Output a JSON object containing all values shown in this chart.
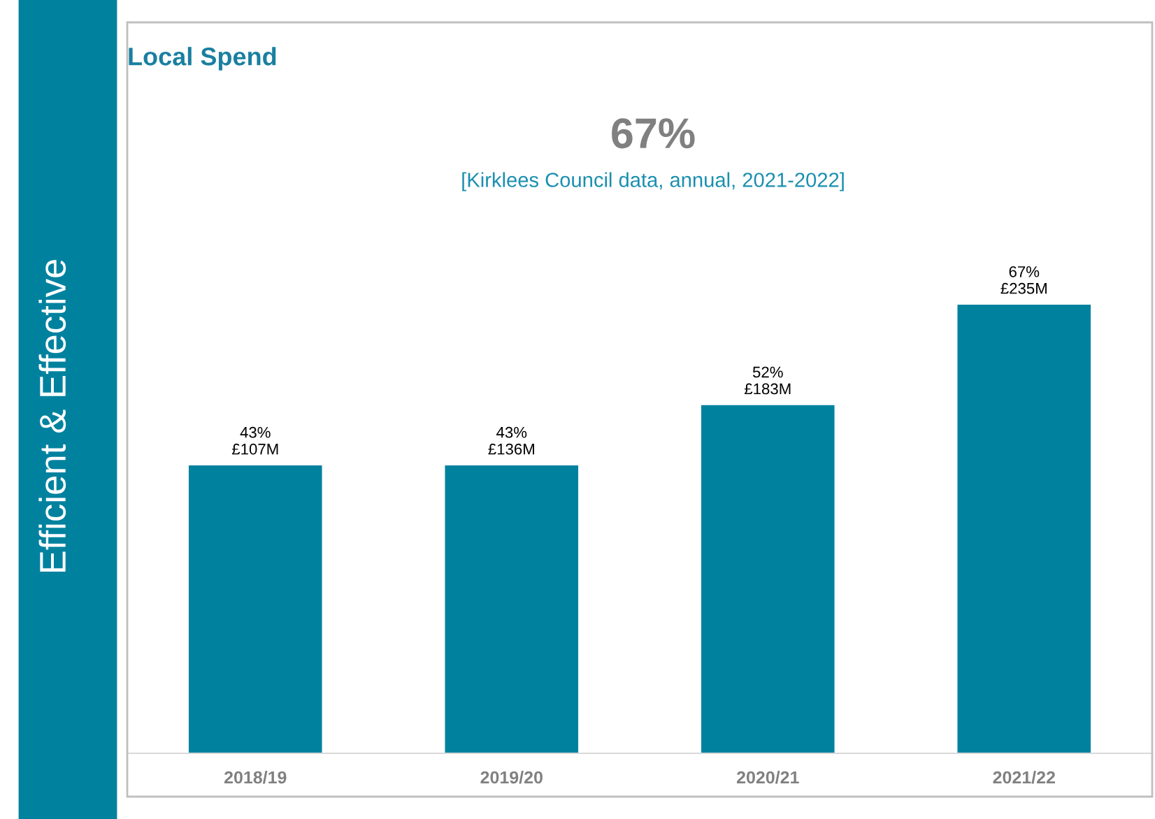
{
  "chart_data": {
    "type": "bar",
    "title": "Local Spend",
    "subtitle": "67%",
    "annotations": [
      "[Kirklees Council data, annual, 2021-2022]",
      "Efficient & Effective"
    ],
    "categories": [
      "2018/19",
      "2019/20",
      "2020/21",
      "2021/22"
    ],
    "values": [
      43,
      43,
      52,
      67
    ],
    "value_labels": [
      "43%\n£107M",
      "43%\n£136M",
      "52%\n£183M",
      "67%\n£235M"
    ],
    "color": "#00829f",
    "tick_labels": "x",
    "grid": false,
    "legend": false
  }
}
